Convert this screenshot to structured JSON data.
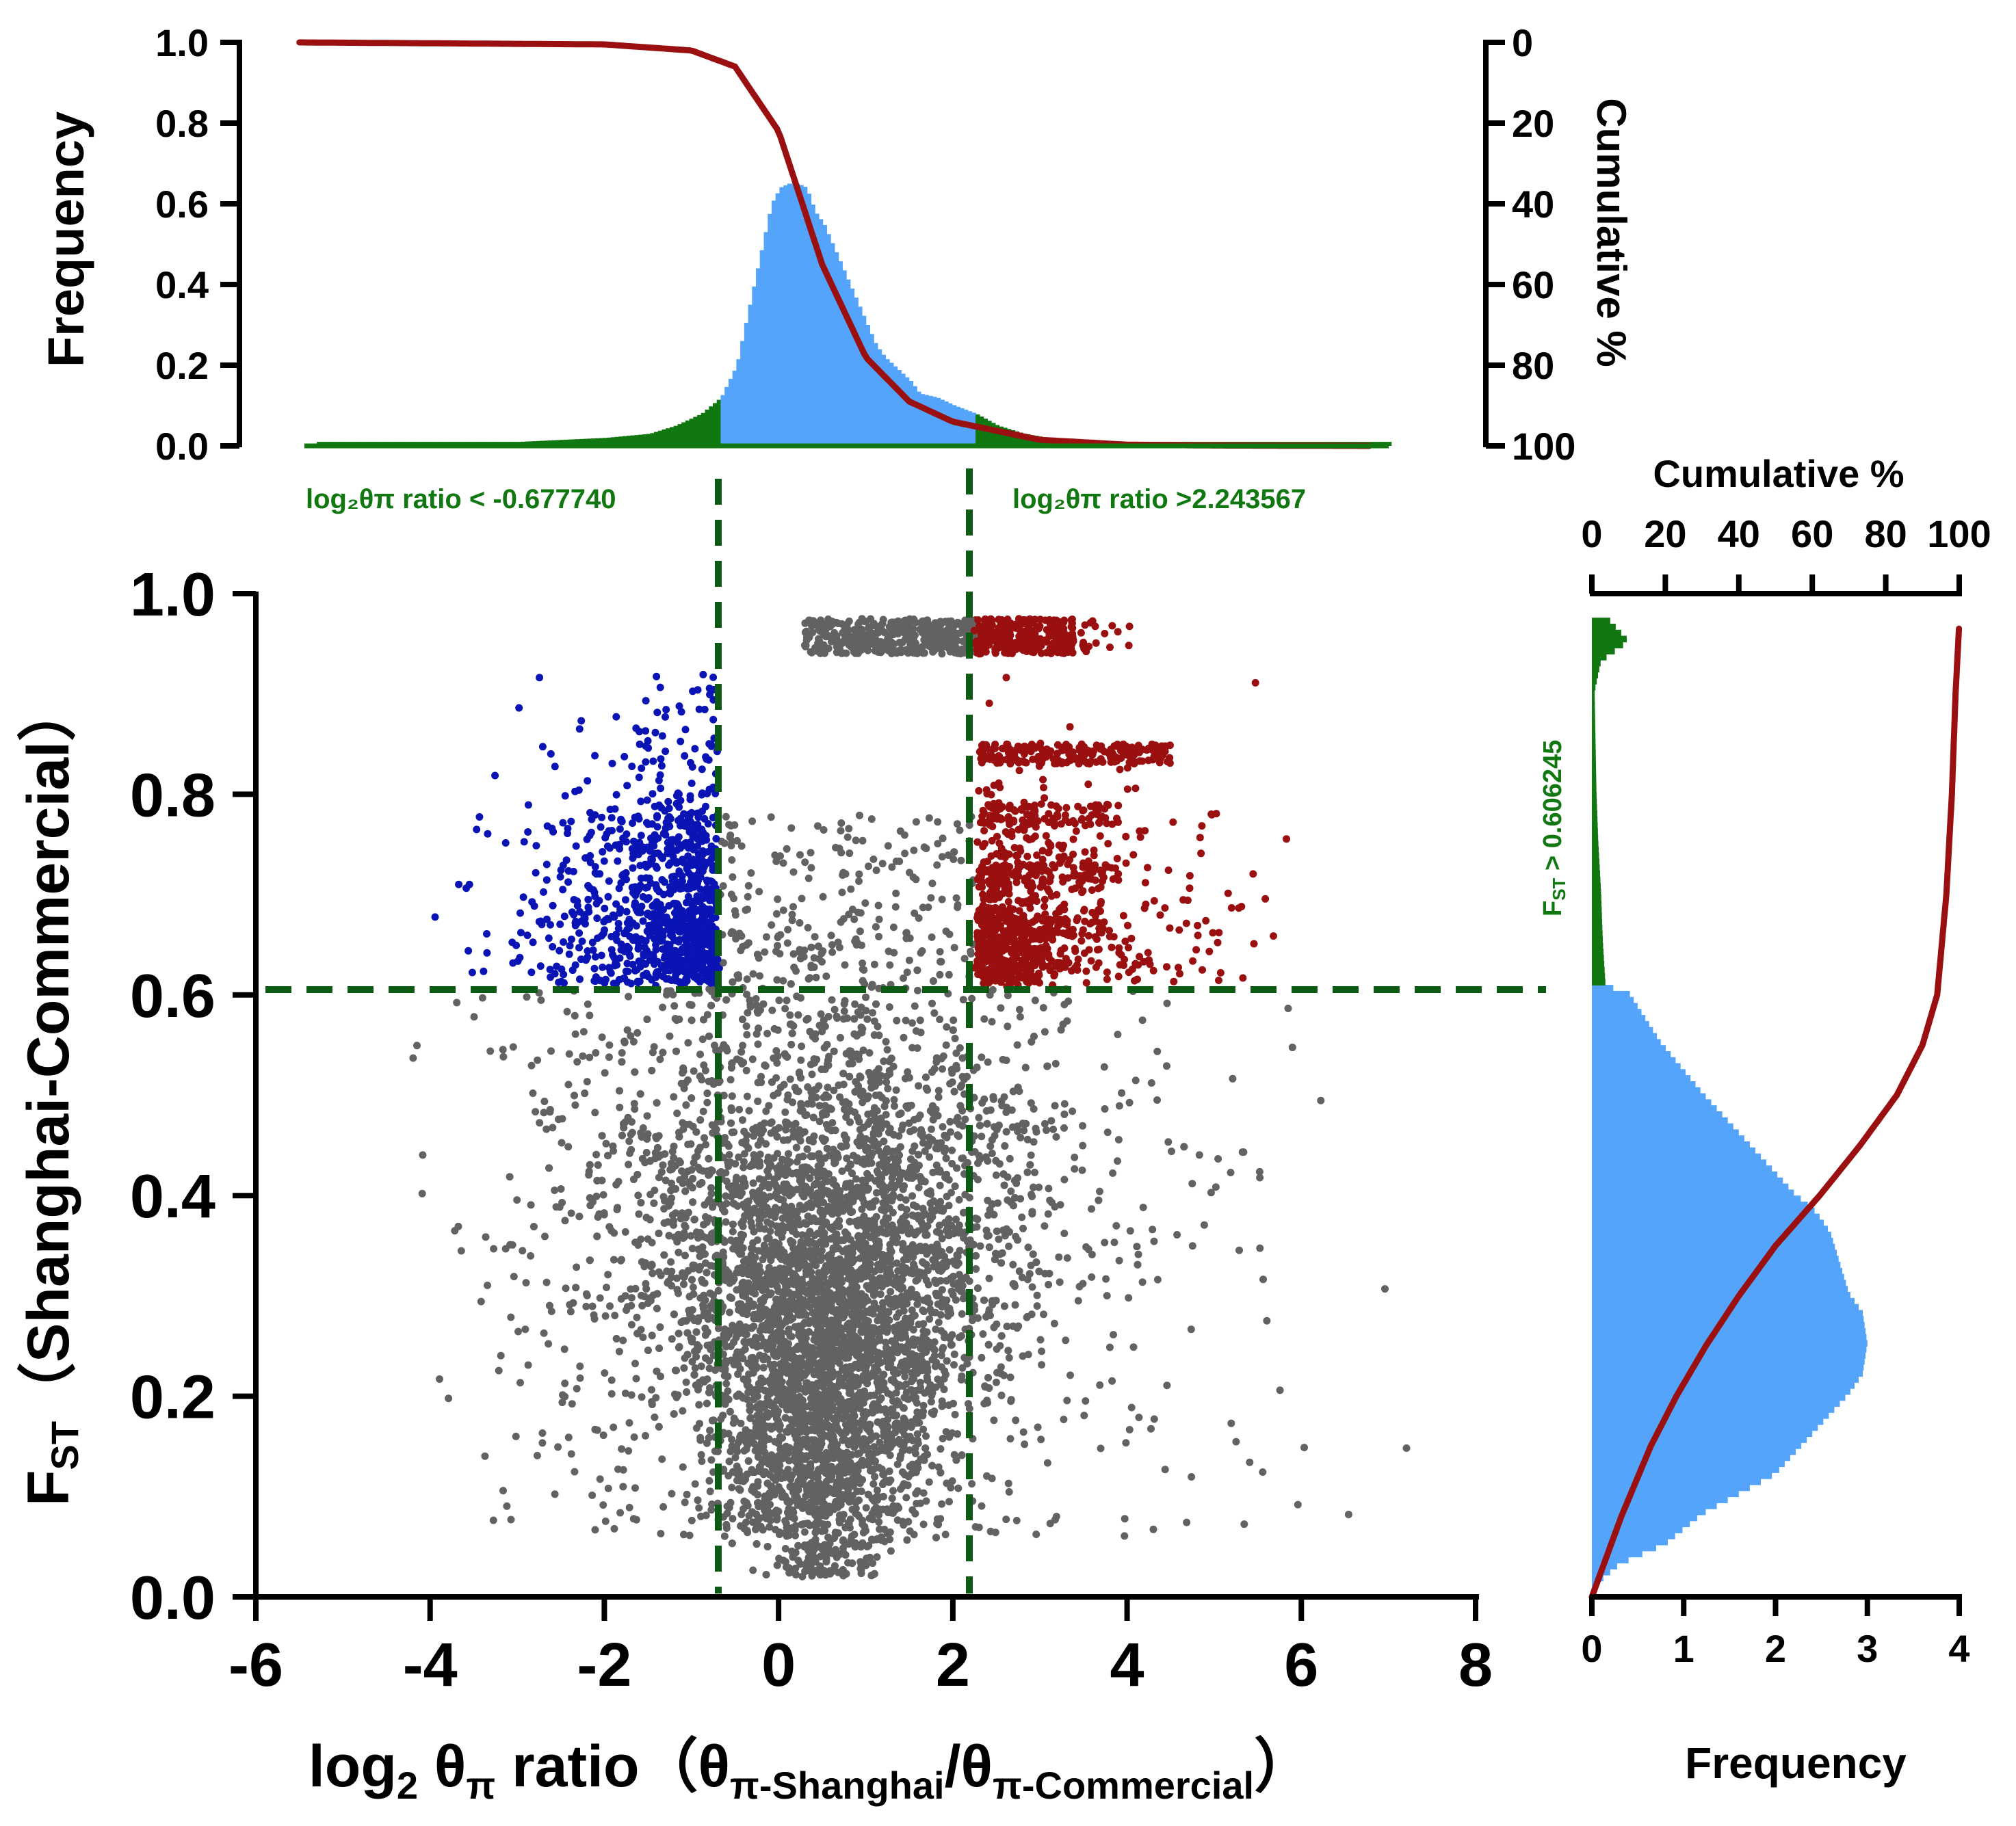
{
  "chart_data": [
    {
      "type": "area",
      "panel": "top-histogram",
      "ylabel": "Frequency",
      "y2label": "Cumulative %",
      "ylim": [
        0,
        1.0
      ],
      "y2lim": [
        0,
        100
      ],
      "y2_inverted": true,
      "y_ticks": [
        "0.0",
        "0.2",
        "0.4",
        "0.6",
        "0.8",
        "1.0"
      ],
      "y2_ticks": [
        "0",
        "20",
        "40",
        "60",
        "80",
        "100"
      ],
      "xlim": [
        -6,
        8
      ],
      "x_log2_ratio": [
        -5.3,
        -4.5,
        -3.5,
        -3.0,
        -2.5,
        -2.0,
        -1.5,
        -1.2,
        -0.9,
        -0.678,
        -0.5,
        -0.35,
        -0.2,
        -0.1,
        0.0,
        0.1,
        0.2,
        0.3,
        0.4,
        0.5,
        0.6,
        0.7,
        0.8,
        0.9,
        1.0,
        1.1,
        1.2,
        1.3,
        1.4,
        1.5,
        1.6,
        1.8,
        2.0,
        2.243,
        2.5,
        2.8,
        3.2,
        3.8,
        5.0,
        6.0,
        7.0
      ],
      "frequency": [
        0.01,
        0.01,
        0.01,
        0.01,
        0.015,
        0.02,
        0.03,
        0.05,
        0.08,
        0.12,
        0.2,
        0.35,
        0.5,
        0.6,
        0.64,
        0.65,
        0.65,
        0.64,
        0.58,
        0.55,
        0.5,
        0.45,
        0.4,
        0.35,
        0.3,
        0.25,
        0.22,
        0.2,
        0.18,
        0.16,
        0.13,
        0.12,
        0.1,
        0.08,
        0.05,
        0.03,
        0.015,
        0.01,
        0.01,
        0.01,
        0.01
      ],
      "cumulative_curve": {
        "x": [
          -5.5,
          -2.0,
          -1.0,
          -0.5,
          0.0,
          0.5,
          1.0,
          1.5,
          2.0,
          3.0,
          4.0,
          5.0,
          6.8
        ],
        "percent": [
          0,
          0.5,
          2,
          6,
          22,
          55,
          78,
          89,
          94,
          98.5,
          99.7,
          99.9,
          100
        ]
      },
      "thresholds": [
        {
          "x": -0.67774,
          "label": "log₂θπ ratio < -0.677740"
        },
        {
          "x": 2.243567,
          "label": "log₂θπ ratio >2.243567"
        }
      ],
      "colors": {
        "outside": "#117711",
        "inside": "#55a4fb",
        "curve": "#9a0f0f"
      }
    },
    {
      "type": "scatter",
      "panel": "main-scatter",
      "xlim": [
        -6,
        8
      ],
      "ylim": [
        0,
        1.0
      ],
      "x_ticks": [
        "-6",
        "-4",
        "-2",
        "0",
        "2",
        "4",
        "6",
        "8"
      ],
      "y_ticks": [
        "0.0",
        "0.2",
        "0.4",
        "0.6",
        "0.8",
        "1.0"
      ],
      "xlabel": {
        "main": "log",
        "sub": "2",
        "theta": " θ",
        "pi": "π",
        "rest": " ratio（θ",
        "sub2": "π-Shanghai",
        "slash": "/θ",
        "sub3": "π-Commercial",
        "close": "）"
      },
      "ylabel": {
        "main": "F",
        "sub": "ST",
        "rest": "（Shanghai-Commercial）"
      },
      "threshold_fst": 0.606245,
      "threshold_x": [
        -0.67774,
        2.243567
      ],
      "groups": [
        {
          "name": "background",
          "color": "#626262"
        },
        {
          "name": "low ratio, high Fst",
          "color": "#0a14b4"
        },
        {
          "name": "high ratio, high Fst",
          "color": "#9a0f0f"
        }
      ]
    },
    {
      "type": "area",
      "panel": "right-histogram",
      "xlabel": "Frequency",
      "x2label": "Cumulative %",
      "xlim": [
        0,
        4
      ],
      "x2lim": [
        0,
        100
      ],
      "x_ticks": [
        "0",
        "1",
        "2",
        "3",
        "4"
      ],
      "x2_ticks": [
        "0",
        "20",
        "40",
        "60",
        "80",
        "100"
      ],
      "fst": [
        0.01,
        0.03,
        0.05,
        0.08,
        0.1,
        0.12,
        0.15,
        0.18,
        0.2,
        0.22,
        0.25,
        0.28,
        0.3,
        0.33,
        0.36,
        0.38,
        0.4,
        0.43,
        0.46,
        0.5,
        0.55,
        0.6,
        0.606,
        0.65,
        0.7,
        0.75,
        0.8,
        0.85,
        0.9,
        0.93,
        0.95,
        0.97
      ],
      "frequency": [
        0.05,
        0.3,
        0.8,
        1.2,
        1.6,
        2.0,
        2.3,
        2.6,
        2.8,
        2.95,
        3.0,
        2.95,
        2.8,
        2.7,
        2.6,
        2.45,
        2.2,
        1.9,
        1.6,
        1.2,
        0.75,
        0.4,
        0.15,
        0.12,
        0.1,
        0.07,
        0.05,
        0.04,
        0.03,
        0.1,
        0.4,
        0.2
      ],
      "cumulative_curve": {
        "fst": [
          0.0,
          0.03,
          0.08,
          0.15,
          0.2,
          0.25,
          0.3,
          0.35,
          0.4,
          0.45,
          0.5,
          0.55,
          0.6,
          0.7,
          0.8,
          0.9,
          0.97
        ],
        "percent": [
          0,
          3,
          8,
          16,
          23,
          31,
          40,
          50,
          62,
          73,
          83,
          90,
          94,
          96.5,
          98,
          99,
          100
        ]
      },
      "threshold_label_main": "F",
      "threshold_label_sub": "ST",
      "threshold_label_rest": " > 0.606245",
      "colors": {
        "above": "#117711",
        "below": "#55a4fb",
        "curve": "#9a0f0f"
      }
    }
  ]
}
